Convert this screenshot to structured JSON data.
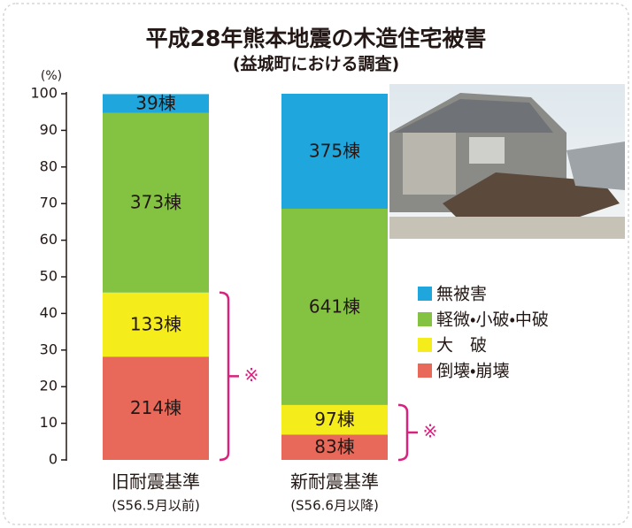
{
  "chart_data": {
    "type": "stacked-bar",
    "title": "平成28年熊本地震の木造住宅被害",
    "subtitle": "(益城町における調査)",
    "y_label": "(%)",
    "categories": [
      "旧耐震基準",
      "新耐震基準"
    ],
    "category_notes": [
      "(S56.5月以前)",
      "(S56.6月以降)"
    ],
    "series": [
      {
        "name": "倒壊・崩壊",
        "color": "#e8685a",
        "values": [
          28.2,
          6.9
        ],
        "labels": [
          "214棟",
          "83棟"
        ]
      },
      {
        "name": "大　破",
        "color": "#f5ec1c",
        "values": [
          17.5,
          8.1
        ],
        "labels": [
          "133棟",
          "97棟"
        ]
      },
      {
        "name": "軽微・小破・中破",
        "color": "#84c341",
        "values": [
          49.1,
          53.6
        ],
        "labels": [
          "373棟",
          "641棟"
        ]
      },
      {
        "name": "無被害",
        "color": "#1ea6dd",
        "values": [
          5.1,
          31.4
        ],
        "labels": [
          "39棟",
          "375棟"
        ]
      }
    ],
    "bracket_note": "※",
    "bracket_color": "#d9227e",
    "ylim": [
      0,
      100
    ],
    "yticks": [
      0,
      10,
      20,
      30,
      40,
      50,
      60,
      70,
      80,
      90,
      100
    ],
    "grid": false
  }
}
